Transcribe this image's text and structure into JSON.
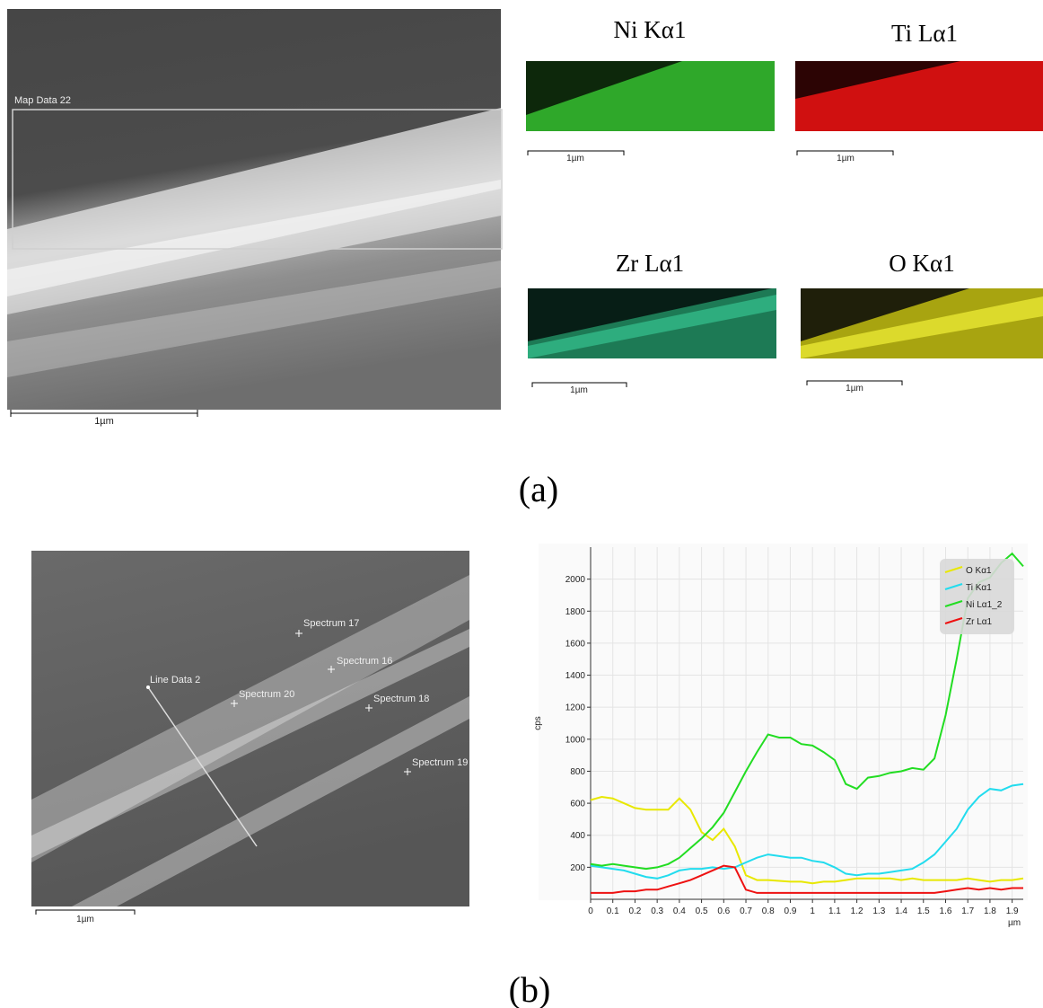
{
  "panel_a": {
    "sem_label": "Map Data 22",
    "sem_scale": "1µm",
    "maps": [
      {
        "title": "Ni Kα1",
        "scale": "1µm"
      },
      {
        "title": "Ti Lα1",
        "scale": "1µm"
      },
      {
        "title": "Zr Lα1",
        "scale": "1µm"
      },
      {
        "title": "O Kα1",
        "scale": "1µm"
      }
    ],
    "caption": "(a)"
  },
  "panel_b": {
    "line_label": "Line Data 2",
    "sem_scale": "1µm",
    "spectra": [
      "Spectrum 17",
      "Spectrum 16",
      "Spectrum 20",
      "Spectrum 18",
      "Spectrum 19"
    ],
    "caption": "(b)"
  },
  "chart_data": {
    "type": "line",
    "y_label": "cps",
    "x_label": "µm",
    "x": [
      0,
      0.05,
      0.1,
      0.15,
      0.2,
      0.25,
      0.3,
      0.35,
      0.4,
      0.45,
      0.5,
      0.55,
      0.6,
      0.65,
      0.7,
      0.75,
      0.8,
      0.85,
      0.9,
      0.95,
      1,
      1.05,
      1.1,
      1.15,
      1.2,
      1.25,
      1.3,
      1.35,
      1.4,
      1.45,
      1.5,
      1.55,
      1.6,
      1.65,
      1.7,
      1.75,
      1.8,
      1.85,
      1.9,
      1.95
    ],
    "series": [
      {
        "name": "O Kα1",
        "color": "#e8e800",
        "values": [
          620,
          640,
          630,
          600,
          570,
          560,
          560,
          560,
          630,
          560,
          420,
          370,
          440,
          330,
          150,
          120,
          120,
          115,
          110,
          110,
          100,
          110,
          110,
          120,
          130,
          130,
          130,
          130,
          120,
          130,
          120,
          120,
          120,
          120,
          130,
          120,
          110,
          120,
          120,
          130
        ]
      },
      {
        "name": "Ti Kα1",
        "color": "#22dcee",
        "values": [
          210,
          200,
          190,
          180,
          160,
          140,
          130,
          150,
          180,
          190,
          190,
          200,
          190,
          200,
          230,
          260,
          280,
          270,
          260,
          260,
          240,
          230,
          200,
          160,
          150,
          160,
          160,
          170,
          180,
          190,
          230,
          280,
          360,
          440,
          560,
          640,
          690,
          680,
          710,
          720
        ]
      },
      {
        "name": "Ni Lα1_2",
        "color": "#22dd22",
        "values": [
          220,
          210,
          220,
          210,
          200,
          190,
          200,
          220,
          260,
          320,
          380,
          450,
          540,
          670,
          800,
          920,
          1030,
          1010,
          1010,
          970,
          960,
          920,
          870,
          720,
          690,
          760,
          770,
          790,
          800,
          820,
          810,
          880,
          1150,
          1500,
          1880,
          1980,
          2010,
          2100,
          2160,
          2080
        ]
      },
      {
        "name": "Zr Lα1",
        "color": "#ee1111",
        "values": [
          40,
          40,
          40,
          50,
          50,
          60,
          60,
          80,
          100,
          120,
          150,
          180,
          210,
          200,
          60,
          40,
          40,
          40,
          40,
          40,
          40,
          40,
          40,
          40,
          40,
          40,
          40,
          40,
          40,
          40,
          40,
          40,
          50,
          60,
          70,
          60,
          70,
          60,
          70,
          70
        ]
      }
    ],
    "xlim": [
      0,
      1.95
    ],
    "ylim": [
      0,
      2200
    ],
    "xticks": [
      0,
      0.1,
      0.2,
      0.3,
      0.4,
      0.5,
      0.6,
      0.7,
      0.8,
      0.9,
      1,
      1.1,
      1.2,
      1.3,
      1.4,
      1.5,
      1.6,
      1.7,
      1.8,
      1.9
    ],
    "yticks": [
      200,
      400,
      600,
      800,
      1000,
      1200,
      1400,
      1600,
      1800,
      2000
    ],
    "grid": true
  }
}
